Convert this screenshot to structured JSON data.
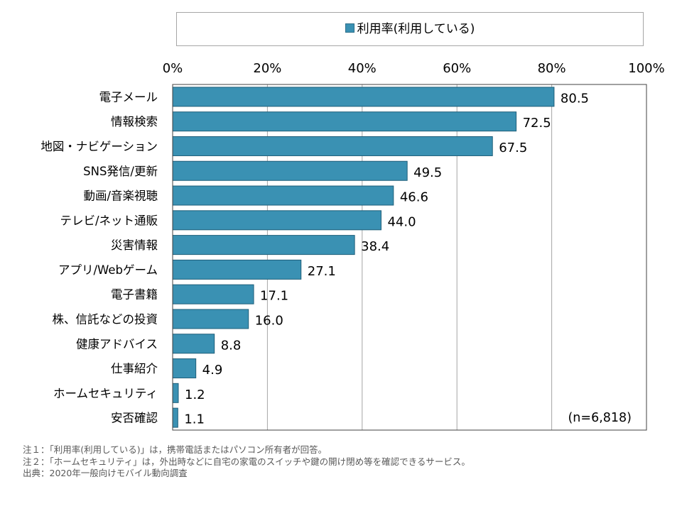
{
  "legend": {
    "label": "利用率(利用している)",
    "color": "#3a91b3"
  },
  "sample_note": "(n=6,818)",
  "notes": [
    "注１：「利用率(利用している)」は，携帯電話またはパソコン所有者が回答。",
    "注２：「ホームセキュリティ」は，外出時などに自宅の家電のスイッチや鍵の開け閉め等を確認できるサービス。",
    "出典：2020年一般向けモバイル動向調査"
  ],
  "chart_data": {
    "type": "bar",
    "orientation": "horizontal",
    "categories": [
      "電子メール",
      "情報検索",
      "地図・ナビゲーション",
      "SNS発信/更新",
      "動画/音楽視聴",
      "テレビ/ネット通販",
      "災害情報",
      "アプリ/Webゲーム",
      "電子書籍",
      "株、信託などの投資",
      "健康アドバイス",
      "仕事紹介",
      "ホームセキュリティ",
      "安否確認"
    ],
    "series": [
      {
        "name": "利用率(利用している)",
        "values": [
          80.5,
          72.5,
          67.5,
          49.5,
          46.6,
          44.0,
          38.4,
          27.1,
          17.1,
          16.0,
          8.8,
          4.9,
          1.2,
          1.1
        ],
        "labels": [
          "80.5",
          "72.5",
          "67.5",
          "49.5",
          "46.6",
          "44.0",
          "38.4",
          "27.1",
          "17.1",
          "16.0",
          "8.8",
          "4.9",
          "1.2",
          "1.1"
        ]
      }
    ],
    "xlim": [
      0,
      100
    ],
    "xticks": [
      "0%",
      "20%",
      "40%",
      "60%",
      "80%",
      "100%"
    ],
    "xtick_values": [
      0,
      20,
      40,
      60,
      80,
      100
    ],
    "grid": true,
    "legend_position": "top",
    "bar_color": "#3a91b3"
  }
}
